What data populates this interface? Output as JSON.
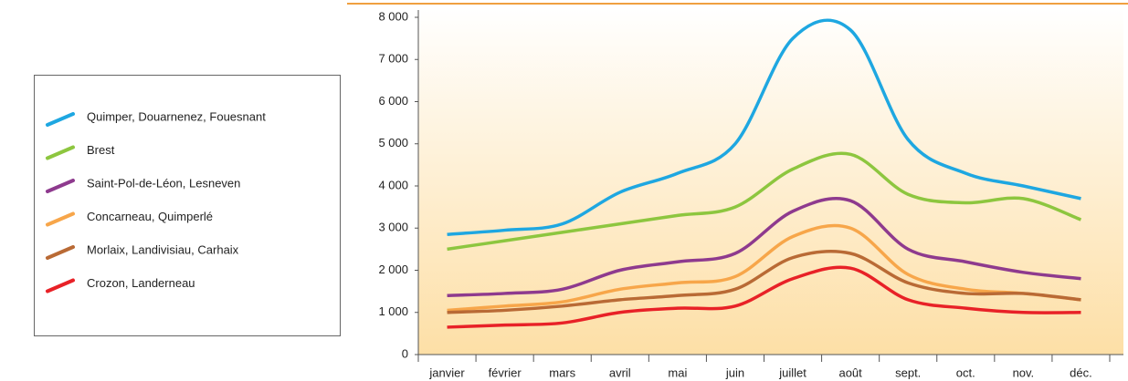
{
  "chart_data": {
    "type": "line",
    "categories": [
      "janvier",
      "février",
      "mars",
      "avril",
      "mai",
      "juin",
      "juillet",
      "août",
      "sept.",
      "oct.",
      "nov.",
      "déc."
    ],
    "series": [
      {
        "name": "Quimper, Douarnenez, Fouesnant",
        "color": "#1ea7e1",
        "values": [
          2850,
          2950,
          3100,
          3850,
          4300,
          5000,
          7500,
          7700,
          5100,
          4300,
          4000,
          3700
        ]
      },
      {
        "name": "Brest",
        "color": "#8dc63f",
        "values": [
          2500,
          2700,
          2900,
          3100,
          3300,
          3500,
          4400,
          4750,
          3800,
          3600,
          3700,
          3200
        ]
      },
      {
        "name": "Saint-Pol-de-Léon, Lesneven",
        "color": "#8e3a8e",
        "values": [
          1400,
          1450,
          1550,
          2000,
          2200,
          2400,
          3400,
          3650,
          2500,
          2200,
          1950,
          1800
        ]
      },
      {
        "name": "Concarneau, Quimperlé",
        "color": "#f7a64a",
        "values": [
          1050,
          1150,
          1250,
          1550,
          1700,
          1850,
          2800,
          3000,
          1900,
          1550,
          1450,
          1300
        ]
      },
      {
        "name": "Morlaix, Landivisiau, Carhaix",
        "color": "#b96a35",
        "values": [
          1000,
          1050,
          1150,
          1300,
          1400,
          1550,
          2300,
          2400,
          1700,
          1450,
          1450,
          1300
        ]
      },
      {
        "name": "Crozon, Landerneau",
        "color": "#e82127",
        "values": [
          650,
          700,
          750,
          1000,
          1100,
          1150,
          1800,
          2050,
          1300,
          1100,
          1000,
          1000
        ]
      }
    ],
    "ylim": [
      0,
      8000
    ],
    "yticks": [
      0,
      {
        "value": 1000,
        "label": "1 000"
      },
      {
        "value": 2000,
        "label": "2 000"
      },
      {
        "value": 3000,
        "label": "3 000"
      },
      {
        "value": 4000,
        "label": "4 000"
      },
      {
        "value": 5000,
        "label": "5 000"
      },
      {
        "value": 6000,
        "label": "6 000"
      },
      {
        "value": 7000,
        "label": "7 000"
      },
      {
        "value": 8000,
        "label": "8 000"
      }
    ],
    "legend": "left"
  }
}
